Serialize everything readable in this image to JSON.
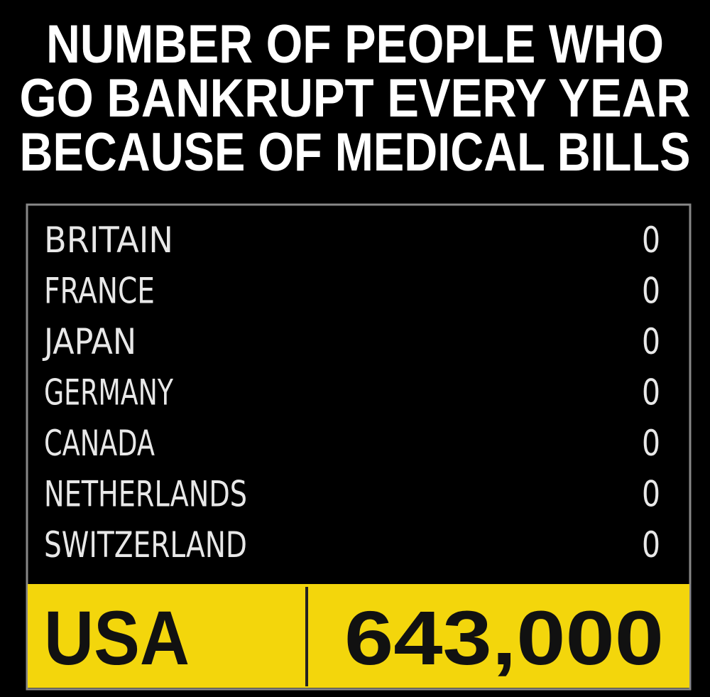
{
  "header": {
    "title_lines": [
      "NUMBER OF PEOPLE WHO",
      "GO BANKRUPT EVERY YEAR",
      "BECAUSE OF MEDICAL BILLS"
    ]
  },
  "table": {
    "rows": [
      [
        "BRITAIN",
        "0"
      ],
      [
        "FRANCE",
        "0"
      ],
      [
        "JAPAN",
        "0"
      ],
      [
        "GERMANY",
        "0"
      ],
      [
        "CANADA",
        "0"
      ],
      [
        "NETHERLANDS",
        "0"
      ],
      [
        "SWITZERLAND",
        "0"
      ]
    ],
    "highlight": [
      "USA",
      "643,000"
    ]
  }
}
